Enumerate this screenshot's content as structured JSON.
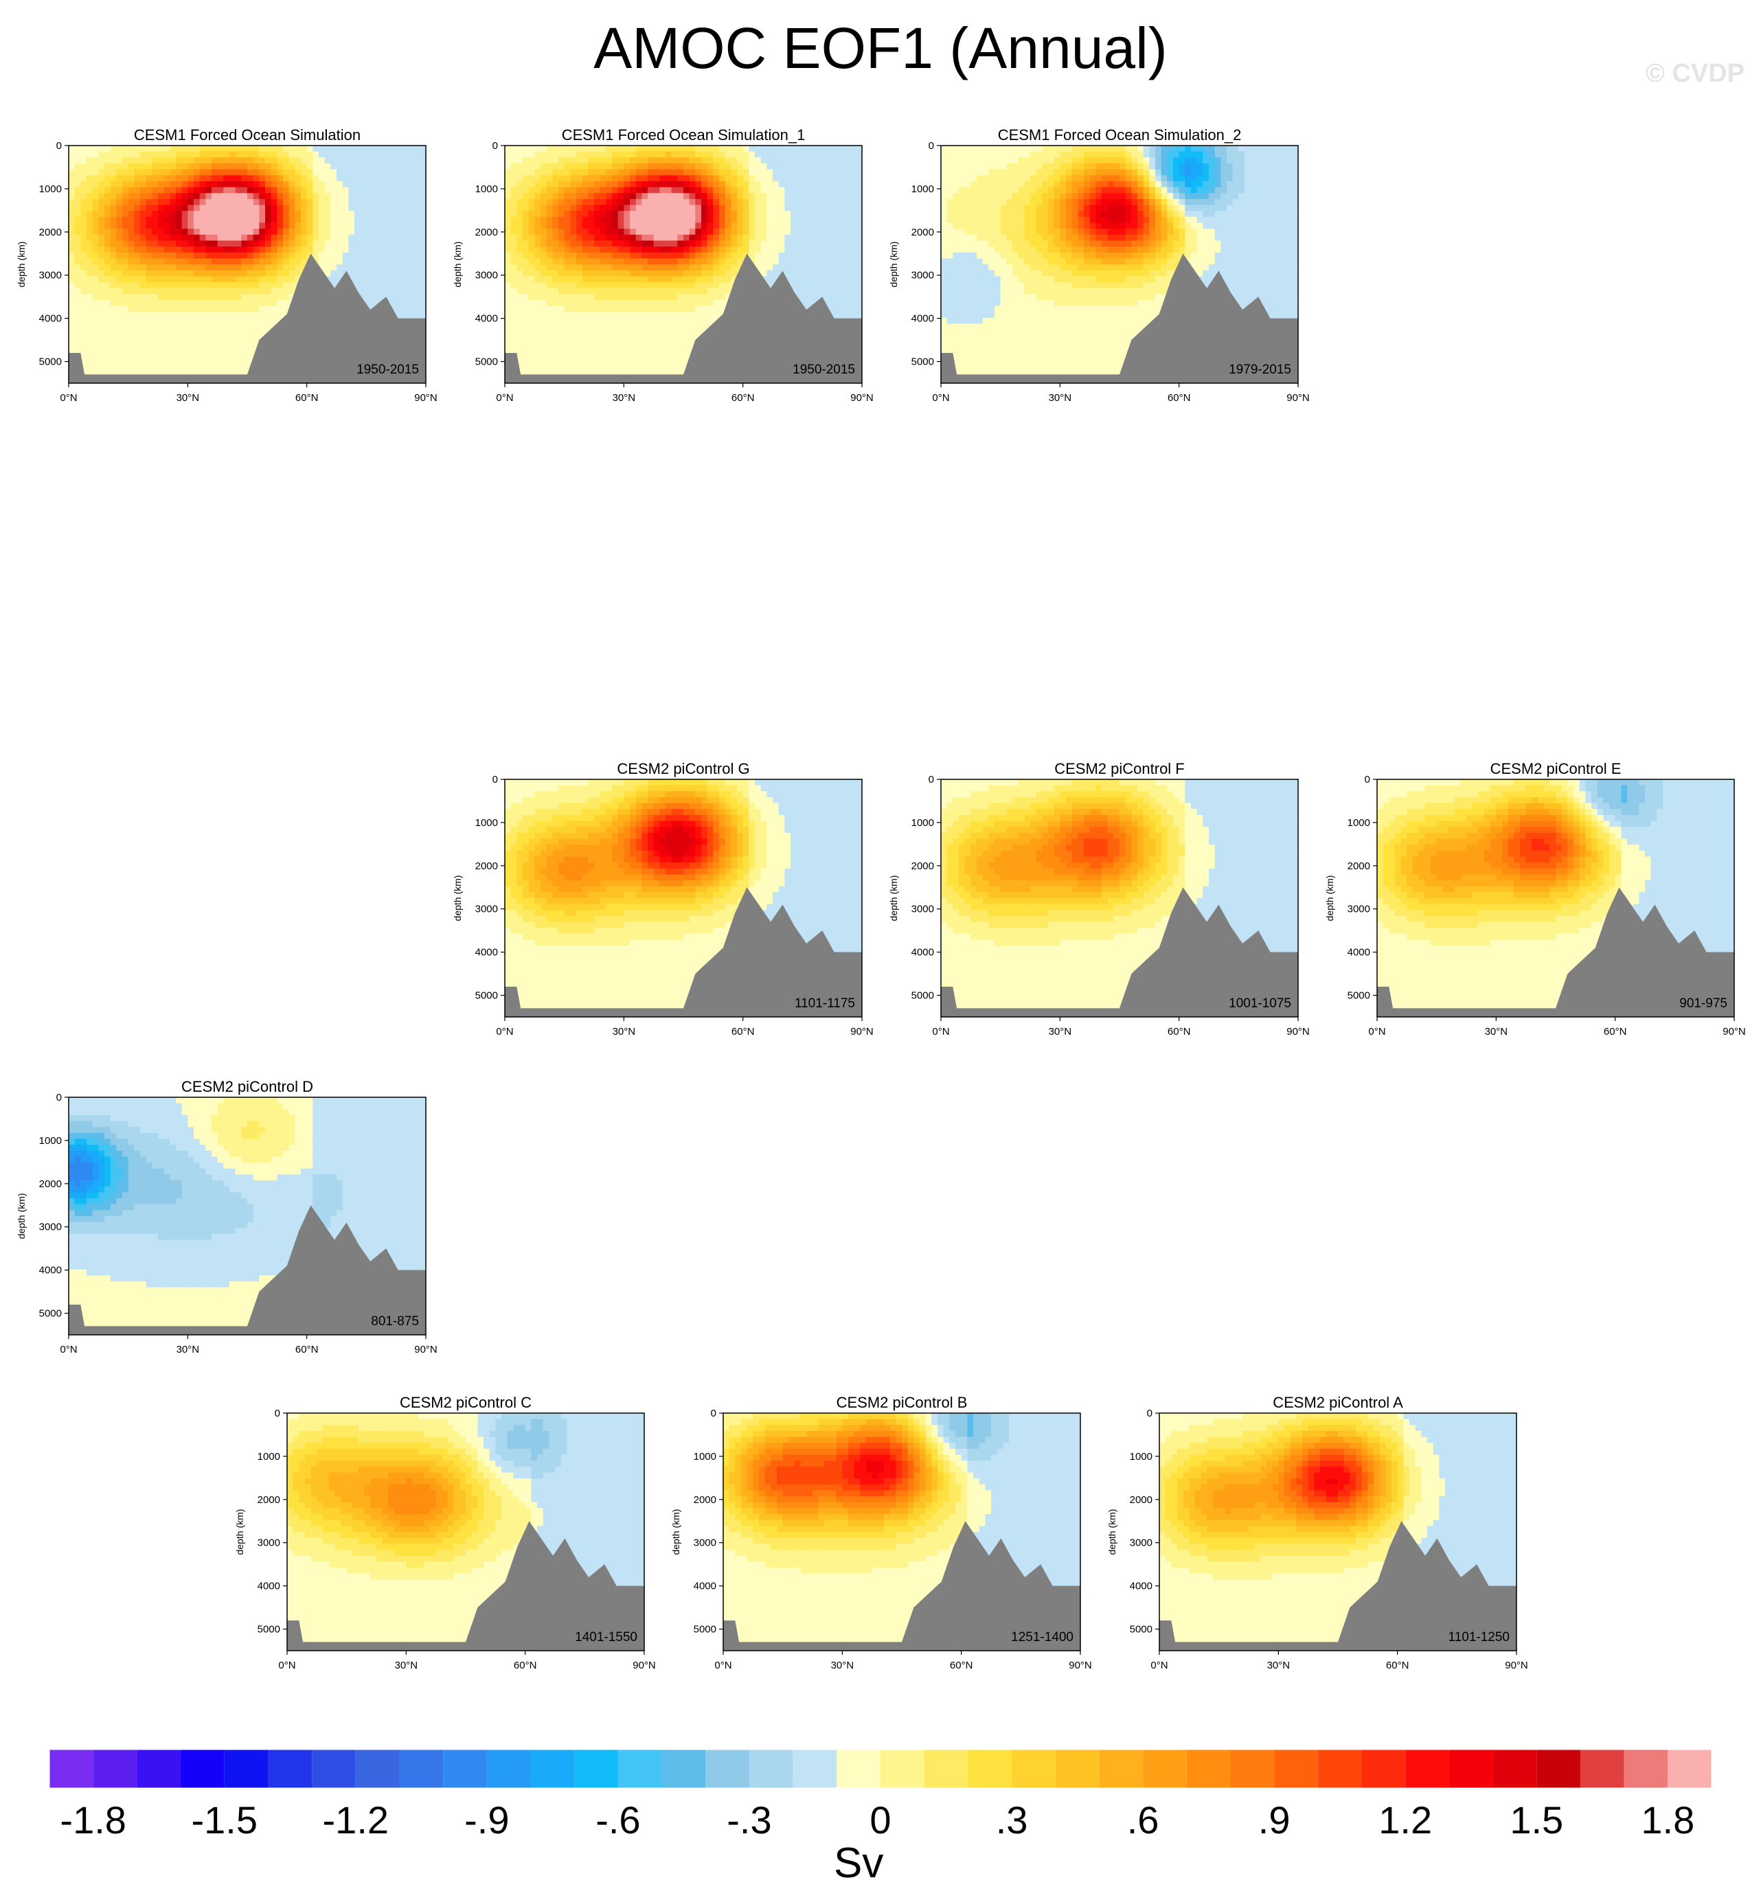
{
  "title": "AMOC EOF1 (Annual)",
  "watermark": "© CVDP",
  "colors": {
    "land": "#7f7f7f",
    "palette": [
      "#7b2cf2",
      "#5c1ff0",
      "#3a10f5",
      "#1500fb",
      "#0e13f1",
      "#2136eb",
      "#2e4ee5",
      "#3a66e2",
      "#3576ea",
      "#2e89f3",
      "#249cf7",
      "#19aafa",
      "#11bbf8",
      "#42c4f5",
      "#5cbdea",
      "#8fcae8",
      "#a9d7ee",
      "#c2e3f5",
      "#fffec0",
      "#fff58f",
      "#ffeb63",
      "#ffe13f",
      "#ffd32f",
      "#ffc223",
      "#ffb01b",
      "#ffa014",
      "#ff8e10",
      "#ff7b0d",
      "#ff620b",
      "#ff470a",
      "#ff2b0a",
      "#ff0c0a",
      "#f40009",
      "#e00009",
      "#c8000a",
      "#e04040",
      "#ee7a7a",
      "#fbb0b0"
    ]
  },
  "colorbar": {
    "labels": [
      "-1.8",
      "-1.5",
      "-1.2",
      "-.9",
      "-.6",
      "-.3",
      "0",
      ".3",
      ".6",
      ".9",
      "1.2",
      "1.5",
      "1.8"
    ],
    "unit": "Sv"
  },
  "axes": {
    "ylabel": "depth (km)",
    "yticks": [
      "0",
      "1000",
      "2000",
      "3000",
      "4000",
      "5000"
    ],
    "xticks": [
      "0°N",
      "30°N",
      "60°N",
      "90°N"
    ]
  },
  "chart_data": [
    {
      "type": "heatmap",
      "title": "CESM1 Forced Ocean Simulation",
      "period": "1950-2015",
      "ylabel": "depth (km)",
      "xlim": [
        0,
        90
      ],
      "ylim": [
        0,
        5500
      ],
      "features": [
        {
          "sign": 1,
          "x": 42,
          "y": 1600,
          "amp": 2.1
        },
        {
          "sign": 1,
          "x": 20,
          "y": 1800,
          "amp": 0.9
        }
      ]
    },
    {
      "type": "heatmap",
      "title": "CESM1 Forced Ocean Simulation_1",
      "period": "1950-2015",
      "ylabel": "depth (km)",
      "xlim": [
        0,
        90
      ],
      "ylim": [
        0,
        5500
      ],
      "features": [
        {
          "sign": 1,
          "x": 42,
          "y": 1600,
          "amp": 2.1
        },
        {
          "sign": 1,
          "x": 20,
          "y": 1800,
          "amp": 0.9
        }
      ]
    },
    {
      "type": "heatmap",
      "title": "CESM1 Forced Ocean Simulation_2",
      "period": "1979-2015",
      "ylabel": "depth (km)",
      "xlim": [
        0,
        90
      ],
      "ylim": [
        0,
        5500
      ],
      "features": [
        {
          "sign": 1,
          "x": 45,
          "y": 1500,
          "amp": 1.4
        },
        {
          "sign": -1,
          "x": 60,
          "y": 700,
          "amp": 0.9
        },
        {
          "sign": -1,
          "x": 8,
          "y": 3000,
          "amp": 0.2
        }
      ]
    },
    {
      "type": "heatmap",
      "title": "CESM2 piControl G",
      "period": "1101-1175",
      "ylabel": "depth (km)",
      "xlim": [
        0,
        90
      ],
      "ylim": [
        0,
        5500
      ],
      "features": [
        {
          "sign": 1,
          "x": 44,
          "y": 1400,
          "amp": 1.4
        },
        {
          "sign": 1,
          "x": 15,
          "y": 2100,
          "amp": 0.6
        }
      ]
    },
    {
      "type": "heatmap",
      "title": "CESM2 piControl F",
      "period": "1001-1075",
      "ylabel": "depth (km)",
      "xlim": [
        0,
        90
      ],
      "ylim": [
        0,
        5500
      ],
      "features": [
        {
          "sign": 1,
          "x": 40,
          "y": 1500,
          "amp": 0.9
        },
        {
          "sign": 1,
          "x": 15,
          "y": 2000,
          "amp": 0.5
        }
      ]
    },
    {
      "type": "heatmap",
      "title": "CESM2 piControl E",
      "period": "901-975",
      "ylabel": "depth (km)",
      "xlim": [
        0,
        90
      ],
      "ylim": [
        0,
        5500
      ],
      "features": [
        {
          "sign": 1,
          "x": 42,
          "y": 1500,
          "amp": 1.0
        },
        {
          "sign": 1,
          "x": 15,
          "y": 2000,
          "amp": 0.5
        },
        {
          "sign": -1,
          "x": 58,
          "y": 500,
          "amp": 0.4
        }
      ]
    },
    {
      "type": "heatmap",
      "title": "CESM2 piControl D",
      "period": "801-875",
      "ylabel": "depth (km)",
      "xlim": [
        0,
        90
      ],
      "ylim": [
        0,
        5500
      ],
      "features": [
        {
          "sign": -1,
          "x": 2,
          "y": 1700,
          "amp": 0.8
        },
        {
          "sign": 1,
          "x": 45,
          "y": 1000,
          "amp": 0.3
        }
      ]
    },
    {
      "type": "heatmap",
      "title": "CESM2 piControl C",
      "period": "1401-1550",
      "ylabel": "depth (km)",
      "xlim": [
        0,
        90
      ],
      "ylim": [
        0,
        5500
      ],
      "features": [
        {
          "sign": 1,
          "x": 33,
          "y": 2000,
          "amp": 0.6
        },
        {
          "sign": 1,
          "x": 10,
          "y": 1500,
          "amp": 0.4
        },
        {
          "sign": -1,
          "x": 58,
          "y": 700,
          "amp": 0.3
        }
      ]
    },
    {
      "type": "heatmap",
      "title": "CESM2 piControl B",
      "period": "1251-1400",
      "ylabel": "depth (km)",
      "xlim": [
        0,
        90
      ],
      "ylim": [
        0,
        5500
      ],
      "features": [
        {
          "sign": 1,
          "x": 40,
          "y": 1200,
          "amp": 1.2
        },
        {
          "sign": 1,
          "x": 15,
          "y": 1400,
          "amp": 0.9
        },
        {
          "sign": -1,
          "x": 58,
          "y": 400,
          "amp": 0.4
        }
      ]
    },
    {
      "type": "heatmap",
      "title": "CESM2 piControl A",
      "period": "1101-1250",
      "ylabel": "depth (km)",
      "xlim": [
        0,
        90
      ],
      "ylim": [
        0,
        5500
      ],
      "features": [
        {
          "sign": 1,
          "x": 44,
          "y": 1500,
          "amp": 1.2
        },
        {
          "sign": 1,
          "x": 15,
          "y": 2000,
          "amp": 0.5
        }
      ]
    }
  ]
}
